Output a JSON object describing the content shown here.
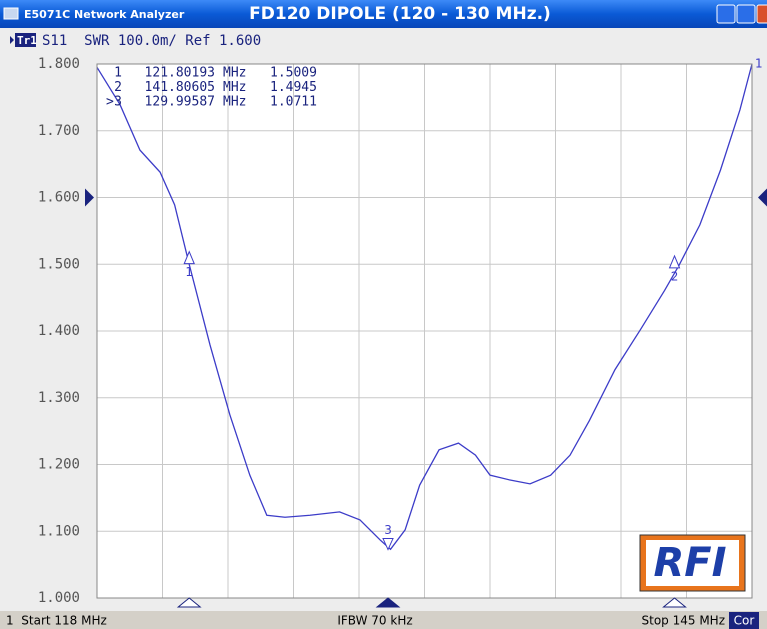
{
  "window": {
    "app_title": "E5071C Network Analyzer",
    "title": "FD120  DIPOLE (120 - 130 MHz.)"
  },
  "header": {
    "trace": "Tr1",
    "settings": "S11  SWR 100.0m/ Ref 1.600"
  },
  "footer": {
    "start": "1  Start 118 MHz",
    "ifbw": "IFBW 70 kHz",
    "stop": "Stop 145 MHz",
    "cor": "Cor"
  },
  "logo": "RFI",
  "chart_data": {
    "type": "line",
    "xlim": [
      118,
      145
    ],
    "xticks": [
      120.7,
      123.4,
      126.1,
      128.8,
      131.5,
      134.2,
      136.9,
      139.6,
      142.3
    ],
    "ylim": [
      1.0,
      1.8
    ],
    "yticks": [
      {
        "value": 1.0,
        "label": "1.000"
      },
      {
        "value": 1.1,
        "label": "1.100"
      },
      {
        "value": 1.2,
        "label": "1.200"
      },
      {
        "value": 1.3,
        "label": "1.300"
      },
      {
        "value": 1.4,
        "label": "1.400"
      },
      {
        "value": 1.5,
        "label": "1.500"
      },
      {
        "value": 1.6,
        "label": "1.600"
      },
      {
        "value": 1.7,
        "label": "1.700"
      },
      {
        "value": 1.8,
        "label": "1.800"
      }
    ],
    "reference": 1.6,
    "grid": true,
    "trace_label": "1",
    "x": [
      118,
      118.95,
      119.77,
      120.6,
      121.2,
      121.8,
      122.66,
      123.48,
      124.3,
      125.0,
      125.75,
      126.78,
      128.0,
      128.84,
      129.67,
      130.1,
      130.7,
      131.3,
      132.1,
      132.9,
      133.6,
      134.2,
      135.0,
      135.85,
      136.7,
      137.5,
      138.3,
      139.35,
      140.4,
      141.4,
      142.0,
      142.85,
      143.7,
      144.5,
      145
    ],
    "series": [
      {
        "name": "S11",
        "color": "#3c3cc8",
        "values": [
          1.795,
          1.739,
          1.671,
          1.638,
          1.589,
          1.5,
          1.379,
          1.274,
          1.184,
          1.124,
          1.121,
          1.124,
          1.129,
          1.117,
          1.087,
          1.073,
          1.102,
          1.169,
          1.222,
          1.232,
          1.214,
          1.184,
          1.177,
          1.171,
          1.184,
          1.214,
          1.266,
          1.342,
          1.402,
          1.461,
          1.499,
          1.559,
          1.641,
          1.731,
          1.8
        ]
      }
    ],
    "markers": [
      {
        "name": "1",
        "x": 121.80193,
        "unit": "MHz",
        "y": 1.5009
      },
      {
        "name": "2",
        "x": 141.80605,
        "unit": "MHz",
        "y": 1.4945
      },
      {
        "name": "3",
        "prefix": ">",
        "x": 129.99587,
        "unit": "MHz",
        "y": 1.0711
      }
    ]
  }
}
